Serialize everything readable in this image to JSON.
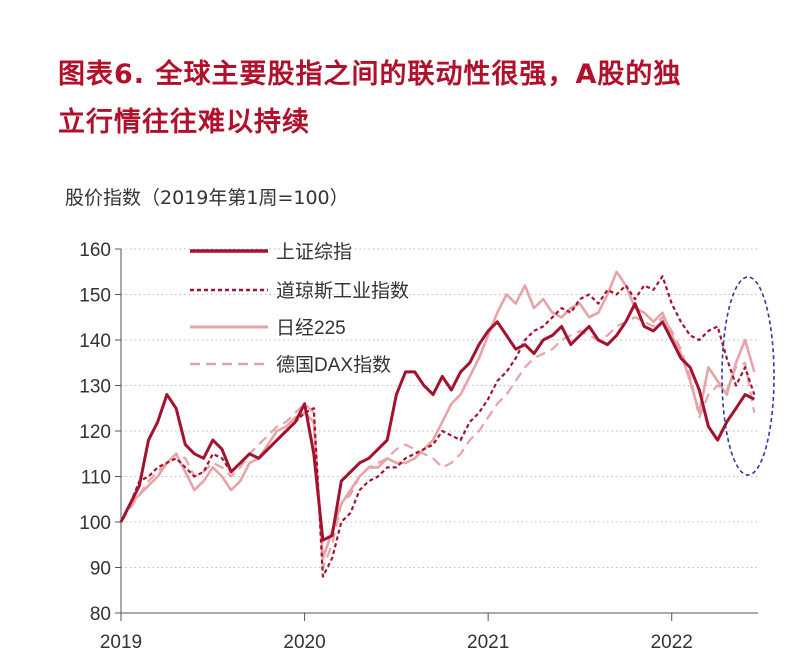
{
  "title_line1": "图表6.  全球主要股指之间的联动性很强，A股的独",
  "title_line2": "立行情往往难以持续",
  "chart_data": {
    "type": "line",
    "title": "图表6.  全球主要股指之间的联动性很强，A股的独立行情往往难以持续",
    "ylabel": "股价指数（2019年第1周=100）",
    "xlabel": "",
    "ylim": [
      80,
      160
    ],
    "yticks": [
      "80",
      "90",
      "100",
      "110",
      "120",
      "130",
      "140",
      "150",
      "160"
    ],
    "xticks": [
      "2019",
      "2020",
      "2021",
      "2022"
    ],
    "xlim": [
      2019.0,
      2022.47
    ],
    "grid": "horizontal dotted",
    "legend_position": "top-left",
    "annotation": "dashed ellipse highlighting 2022 Q2",
    "x": [
      2019.0,
      2019.05,
      2019.1,
      2019.15,
      2019.2,
      2019.25,
      2019.3,
      2019.35,
      2019.4,
      2019.45,
      2019.5,
      2019.55,
      2019.6,
      2019.65,
      2019.7,
      2019.75,
      2019.8,
      2019.85,
      2019.9,
      2019.95,
      2020.0,
      2020.05,
      2020.1,
      2020.15,
      2020.2,
      2020.25,
      2020.3,
      2020.35,
      2020.4,
      2020.45,
      2020.5,
      2020.55,
      2020.6,
      2020.65,
      2020.7,
      2020.75,
      2020.8,
      2020.85,
      2020.9,
      2020.95,
      2021.0,
      2021.05,
      2021.1,
      2021.15,
      2021.2,
      2021.25,
      2021.3,
      2021.35,
      2021.4,
      2021.45,
      2021.5,
      2021.55,
      2021.6,
      2021.65,
      2021.7,
      2021.75,
      2021.8,
      2021.85,
      2021.9,
      2021.95,
      2022.0,
      2022.05,
      2022.1,
      2022.15,
      2022.2,
      2022.25,
      2022.3,
      2022.35,
      2022.4,
      2022.45
    ],
    "series": [
      {
        "name": "上证综指",
        "color": "#a3122e",
        "dash": "solid",
        "width": 3.0,
        "values": [
          100,
          104,
          108,
          118,
          122,
          128,
          125,
          117,
          115,
          114,
          118,
          116,
          111,
          113,
          115,
          114,
          116,
          118,
          120,
          122,
          126,
          115,
          96,
          97,
          109,
          111,
          113,
          114,
          116,
          118,
          128,
          133,
          133,
          130,
          128,
          132,
          129,
          133,
          135,
          139,
          142,
          144,
          141,
          138,
          139,
          137,
          140,
          141,
          143,
          139,
          141,
          143,
          140,
          139,
          141,
          144,
          148,
          143,
          142,
          144,
          140,
          136,
          134,
          129,
          121,
          118,
          122,
          125,
          128,
          127
        ]
      },
      {
        "name": "道琼斯工业指数",
        "color": "#a3122e",
        "dash": "4,3",
        "width": 2.2,
        "values": [
          100,
          104,
          109,
          110,
          112,
          113,
          114,
          112,
          110,
          111,
          115,
          114,
          111,
          113,
          115,
          114,
          116,
          118,
          120,
          122,
          124,
          125,
          88,
          92,
          100,
          102,
          107,
          109,
          110,
          112,
          112,
          114,
          115,
          116,
          117,
          120,
          119,
          118,
          122,
          124,
          127,
          131,
          133,
          136,
          140,
          142,
          143,
          145,
          147,
          146,
          149,
          150,
          148,
          151,
          150,
          152,
          149,
          152,
          151,
          154,
          148,
          144,
          141,
          140,
          142,
          143,
          136,
          130,
          134,
          128
        ]
      },
      {
        "name": "日经225",
        "color": "#e6a4a8",
        "dash": "solid",
        "width": 2.6,
        "values": [
          100,
          104,
          106,
          108,
          110,
          113,
          115,
          111,
          107,
          109,
          112,
          110,
          107,
          109,
          113,
          114,
          117,
          120,
          121,
          123,
          124,
          122,
          92,
          98,
          104,
          107,
          110,
          112,
          112,
          114,
          113,
          113,
          114,
          116,
          118,
          122,
          126,
          128,
          132,
          136,
          141,
          146,
          150,
          148,
          152,
          147,
          149,
          146,
          145,
          147,
          148,
          145,
          146,
          150,
          155,
          152,
          147,
          146,
          144,
          146,
          141,
          137,
          131,
          124,
          134,
          131,
          128,
          135,
          140,
          133
        ]
      },
      {
        "name": "德国DAX指数",
        "color": "#e6a4a8",
        "dash": "10,6",
        "width": 2.2,
        "values": [
          100,
          103,
          106,
          109,
          111,
          113,
          115,
          114,
          110,
          111,
          113,
          112,
          110,
          112,
          115,
          117,
          119,
          121,
          122,
          124,
          126,
          124,
          90,
          95,
          104,
          106,
          110,
          112,
          113,
          114,
          116,
          117,
          116,
          115,
          114,
          112,
          113,
          115,
          118,
          120,
          123,
          126,
          128,
          131,
          134,
          136,
          137,
          138,
          140,
          141,
          142,
          141,
          140,
          141,
          143,
          144,
          145,
          144,
          143,
          145,
          142,
          138,
          132,
          123,
          128,
          130,
          129,
          134,
          135,
          124
        ]
      }
    ]
  }
}
